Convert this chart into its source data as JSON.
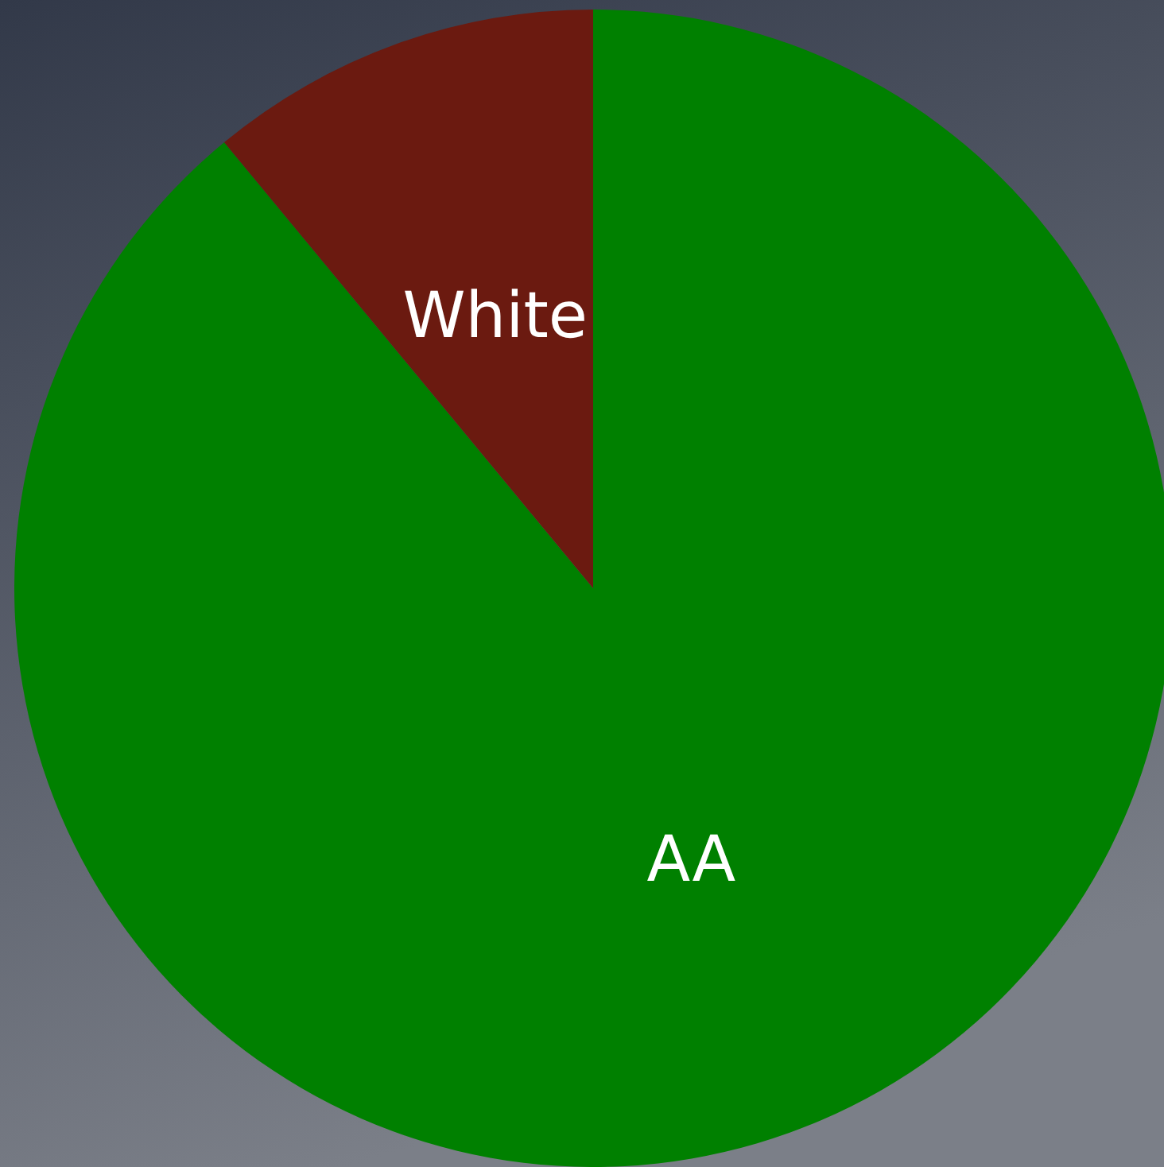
{
  "chart_data": {
    "type": "pie",
    "categories": [
      "AA",
      "White"
    ],
    "values": [
      89,
      11
    ],
    "colors": [
      "#008000",
      "#6b1a10"
    ]
  }
}
